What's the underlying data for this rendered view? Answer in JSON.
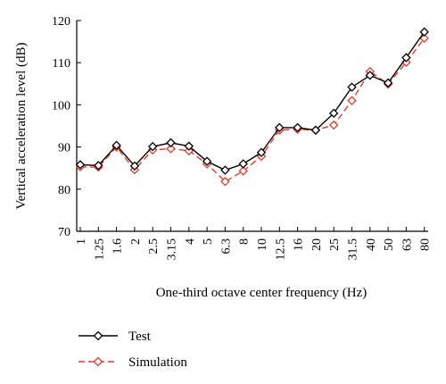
{
  "chart_data": {
    "type": "line",
    "categories": [
      "1",
      "1.25",
      "1.6",
      "2",
      "2.5",
      "3.15",
      "4",
      "5",
      "6.3",
      "8",
      "10",
      "12.5",
      "16",
      "20",
      "25",
      "31.5",
      "40",
      "50",
      "63",
      "80"
    ],
    "series": [
      {
        "name": "Test",
        "color": "#000000",
        "line_style": "solid",
        "marker": "diamond",
        "values": [
          85.8,
          85.6,
          90.4,
          85.5,
          90.1,
          91.0,
          90.2,
          86.6,
          84.5,
          86.0,
          88.7,
          94.6,
          94.6,
          94.0,
          98.0,
          104.2,
          107.0,
          105.2,
          111.2,
          117.3
        ]
      },
      {
        "name": "Simulation",
        "color": "#e8392a",
        "line_style": "dashed",
        "marker": "diamond",
        "values": [
          85.3,
          85.2,
          90.0,
          84.6,
          89.3,
          89.6,
          89.1,
          86.0,
          81.8,
          84.3,
          87.8,
          94.0,
          94.2,
          94.0,
          95.2,
          101.0,
          107.9,
          104.9,
          110.1,
          115.8
        ]
      }
    ],
    "title": "",
    "xlabel": "One-third octave center frequency (Hz)",
    "ylabel": "Vertical acceleration level (dB)",
    "ylim": [
      70,
      120
    ],
    "yticks": [
      70,
      80,
      90,
      100,
      110,
      120
    ],
    "grid": false,
    "legend_position": "bottom-left"
  }
}
